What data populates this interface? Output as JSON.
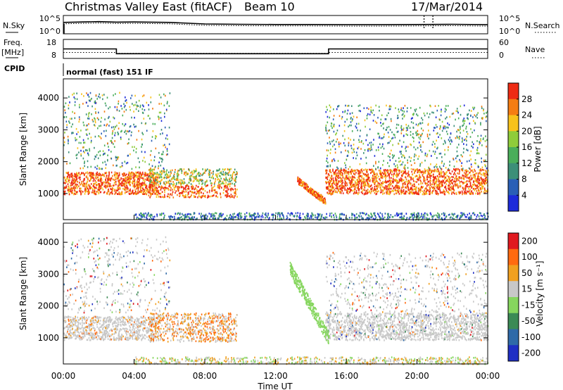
{
  "header": {
    "station": "Christmas Valley East (fitACF)",
    "beam": "Beam 10",
    "date": "17/Mar/2014"
  },
  "side_labels": {
    "nsky": "N.Sky",
    "nsearch": "N.Search",
    "freq": "Freq.",
    "freq_unit": "[MHz]",
    "nave": "Nave",
    "cpid": "CPID",
    "cpid_value": "normal (fast) 151 IF"
  },
  "noise_axis": {
    "left_ticks": [
      "10^5",
      "10^0"
    ],
    "right_ticks": [
      "10^5",
      "10^0"
    ]
  },
  "freq_axis": {
    "left_ticks": [
      "18",
      "8"
    ],
    "right_ticks": [
      "60",
      "0"
    ]
  },
  "chart_data": [
    {
      "type": "line",
      "name": "noise-panel",
      "x": [
        "00:00",
        "02:00",
        "03:00",
        "04:00",
        "06:00",
        "08:00",
        "10:00",
        "12:00",
        "14:00",
        "16:00",
        "18:00",
        "20:00",
        "22:00",
        "24:00"
      ],
      "series": [
        {
          "values": [
            1500,
            2500,
            1800,
            2000,
            1500,
            500,
            400,
            350,
            350,
            300,
            300,
            350,
            400,
            300
          ]
        }
      ],
      "ylim": [
        1,
        100000
      ]
    },
    {
      "type": "line",
      "name": "freq-panel",
      "x": [
        "00:00",
        "03:00",
        "03:00",
        "15:00",
        "15:00",
        "24:00"
      ],
      "series": [
        {
          "values": [
            13.0,
            13.0,
            10.3,
            10.3,
            13.0,
            13.0
          ]
        },
        {
          "values": [
            11.0,
            11.0,
            10.5,
            10.5,
            11.0,
            11.0
          ]
        }
      ],
      "ylim": [
        8,
        18
      ]
    },
    {
      "type": "heatmap",
      "name": "power-panel",
      "ylabel": "Slant Range [km]",
      "yticks": [
        1000,
        2000,
        3000,
        4000
      ],
      "ylim": [
        180,
        4600
      ],
      "colorbar": {
        "label": "Power [dB]",
        "ticks": [
          4,
          8,
          12,
          16,
          20,
          24,
          28
        ],
        "colors": [
          "#1d2bd9",
          "#2a5fb6",
          "#3c8f78",
          "#4aae5a",
          "#8fcc3a",
          "#f7c21b",
          "#f57d12",
          "#ee2b14"
        ]
      }
    },
    {
      "type": "heatmap",
      "name": "velocity-panel",
      "ylabel": "Slant Range [km]",
      "yticks": [
        1000,
        2000,
        3000,
        4000
      ],
      "ylim": [
        180,
        4600
      ],
      "xlabel": "Time UT",
      "xticks": [
        "00:00",
        "04:00",
        "08:00",
        "12:00",
        "16:00",
        "20:00",
        "00:00"
      ],
      "colorbar": {
        "label": "Velocity [m s⁻¹]",
        "ticks": [
          "200",
          "100",
          "50",
          "15",
          "-15",
          "-50",
          "-100",
          "-200"
        ],
        "colors": [
          "#1f2fc4",
          "#2f6aa8",
          "#3b8a55",
          "#86d65e",
          "#c8c8c8",
          "#f0a020",
          "#ff6a10",
          "#e0191f"
        ]
      }
    }
  ]
}
